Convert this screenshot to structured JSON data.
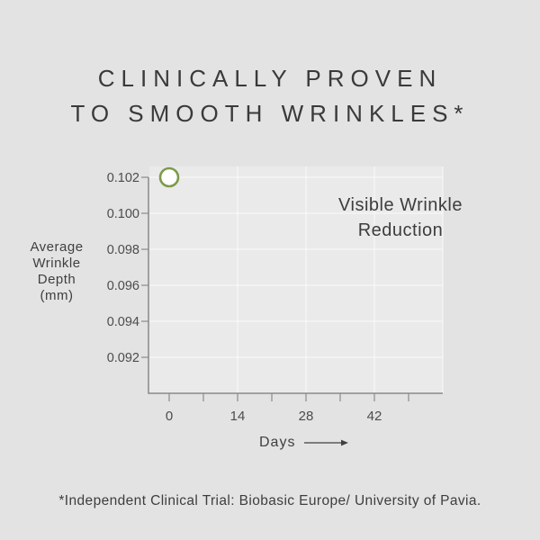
{
  "page": {
    "background": "#e3e3e3",
    "heading_line1": "CLINICALLY PROVEN",
    "heading_line2": "TO SMOOTH WRINKLES*",
    "footnote": "*Independent Clinical Trial: Biobasic Europe/ University of Pavia."
  },
  "chart_data": {
    "type": "scatter",
    "title": "",
    "xlabel": "Days",
    "ylabel": "Average Wrinkle Depth (mm)",
    "ylabel_lines": [
      "Average",
      "Wrinkle",
      "Depth",
      "(mm)"
    ],
    "annotation_lines": [
      "Visible Wrinkle",
      "Reduction"
    ],
    "x_ticks": [
      {
        "day": 0,
        "label": "0"
      },
      {
        "day": 7,
        "label": ""
      },
      {
        "day": 14,
        "label": "14"
      },
      {
        "day": 21,
        "label": ""
      },
      {
        "day": 28,
        "label": "28"
      },
      {
        "day": 35,
        "label": ""
      },
      {
        "day": 42,
        "label": "42"
      },
      {
        "day": 49,
        "label": ""
      }
    ],
    "grid_days": [
      14,
      28,
      42,
      56
    ],
    "y_ticks": [
      {
        "value": 0.102,
        "label": "0.102"
      },
      {
        "value": 0.1,
        "label": "0.100"
      },
      {
        "value": 0.098,
        "label": "0.098"
      },
      {
        "value": 0.096,
        "label": "0.096"
      },
      {
        "value": 0.094,
        "label": "0.094"
      },
      {
        "value": 0.092,
        "label": "0.092"
      }
    ],
    "xlim": [
      0,
      56
    ],
    "ylim": [
      0.0905,
      0.102
    ],
    "grid": true,
    "legend": "none",
    "points": [
      {
        "day": 0,
        "value": 0.102
      }
    ],
    "point_style": {
      "fill": "#ffffff",
      "stroke": "#7d9a4b"
    },
    "colors": {
      "axis": "#8a8a8a",
      "gridline": "rgba(255,255,255,0.75)",
      "tick_text": "#4c4c4c"
    }
  }
}
